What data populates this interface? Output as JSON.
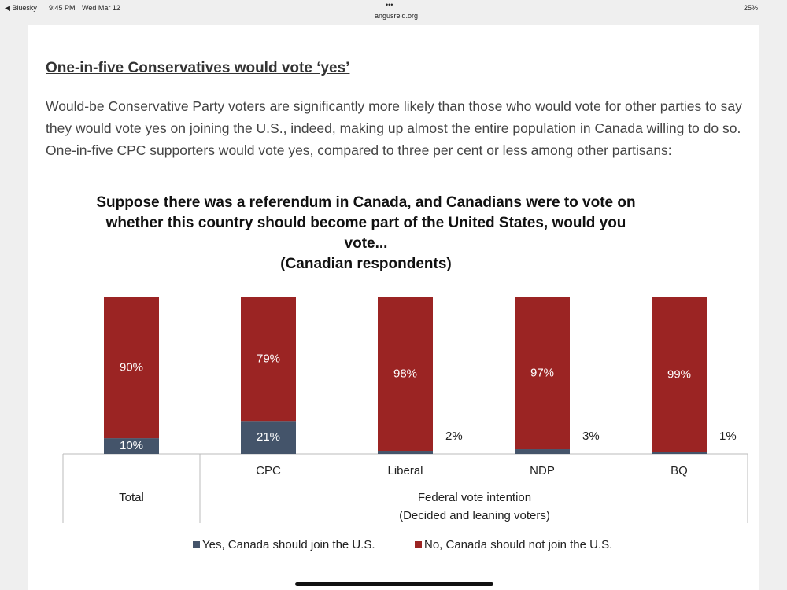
{
  "status_bar": {
    "app": "◀ Bluesky",
    "time": "9:45 PM",
    "date": "Wed Mar 12",
    "menu": "•••",
    "url": "angusreid.org",
    "battery": "25%"
  },
  "article": {
    "heading": "One-in-five Conservatives would vote ‘yes’",
    "paragraph": "Would-be Conservative Party voters are significantly more likely than those who would vote for other parties to say they would vote yes on joining the U.S., indeed, making up almost the entire population in Canada willing to do so. One-in-five CPC supporters would vote yes, compared to three per cent or less among other partisans:"
  },
  "chart_data": {
    "type": "stacked_bar",
    "title": "Suppose there was a referendum in Canada, and Canadians were to vote on whether this country should become part of the United States, would you vote...",
    "subtitle": "(Canadian respondents)",
    "categories": [
      "Total",
      "CPC",
      "Liberal",
      "NDP",
      "BQ"
    ],
    "x_group_label": "Federal vote intention",
    "x_group_note": "(Decided and leaning voters)",
    "series": [
      {
        "name": "Yes, Canada should join the U.S.",
        "color": "#44546a",
        "values": [
          10,
          21,
          2,
          3,
          1
        ],
        "value_labels": [
          "10%",
          "21%",
          "2%",
          "3%",
          "1%"
        ]
      },
      {
        "name": "No, Canada should not join the U.S.",
        "color": "#9b2423",
        "values": [
          90,
          79,
          98,
          97,
          99
        ],
        "value_labels": [
          "90%",
          "79%",
          "98%",
          "97%",
          "99%"
        ]
      }
    ]
  }
}
